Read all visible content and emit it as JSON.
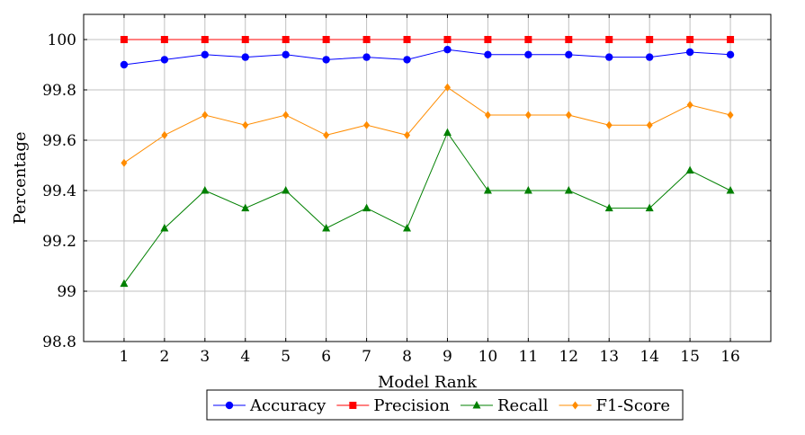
{
  "chart_data": {
    "type": "line",
    "xlabel": "Model Rank",
    "ylabel": "Percentage",
    "x": [
      1,
      2,
      3,
      4,
      5,
      6,
      7,
      8,
      9,
      10,
      11,
      12,
      13,
      14,
      15,
      16
    ],
    "xlim": [
      0,
      17
    ],
    "ylim": [
      98.8,
      100.1
    ],
    "yticks": [
      98.8,
      99,
      99.2,
      99.4,
      99.6,
      99.8,
      100
    ],
    "ytick_labels": [
      "98.8",
      "99",
      "99.2",
      "99.4",
      "99.6",
      "99.8",
      "100"
    ],
    "grid": true,
    "legend_position": "bottom-center",
    "series": [
      {
        "name": "Accuracy",
        "color": "#0000ff",
        "marker": "circle",
        "values": [
          99.9,
          99.92,
          99.94,
          99.93,
          99.94,
          99.92,
          99.93,
          99.92,
          99.96,
          99.94,
          99.94,
          99.94,
          99.93,
          99.93,
          99.95,
          99.94
        ]
      },
      {
        "name": "Precision",
        "color": "#ff0000",
        "marker": "square",
        "values": [
          100,
          100,
          100,
          100,
          100,
          100,
          100,
          100,
          100,
          100,
          100,
          100,
          100,
          100,
          100,
          100
        ]
      },
      {
        "name": "Recall",
        "color": "#008000",
        "marker": "triangle",
        "values": [
          99.03,
          99.25,
          99.4,
          99.33,
          99.4,
          99.25,
          99.33,
          99.25,
          99.63,
          99.4,
          99.4,
          99.4,
          99.33,
          99.33,
          99.48,
          99.4
        ]
      },
      {
        "name": "F1-Score",
        "color": "#ff8c00",
        "marker": "diamond",
        "values": [
          99.51,
          99.62,
          99.7,
          99.66,
          99.7,
          99.62,
          99.66,
          99.62,
          99.81,
          99.7,
          99.7,
          99.7,
          99.66,
          99.66,
          99.74,
          99.7
        ]
      }
    ]
  }
}
